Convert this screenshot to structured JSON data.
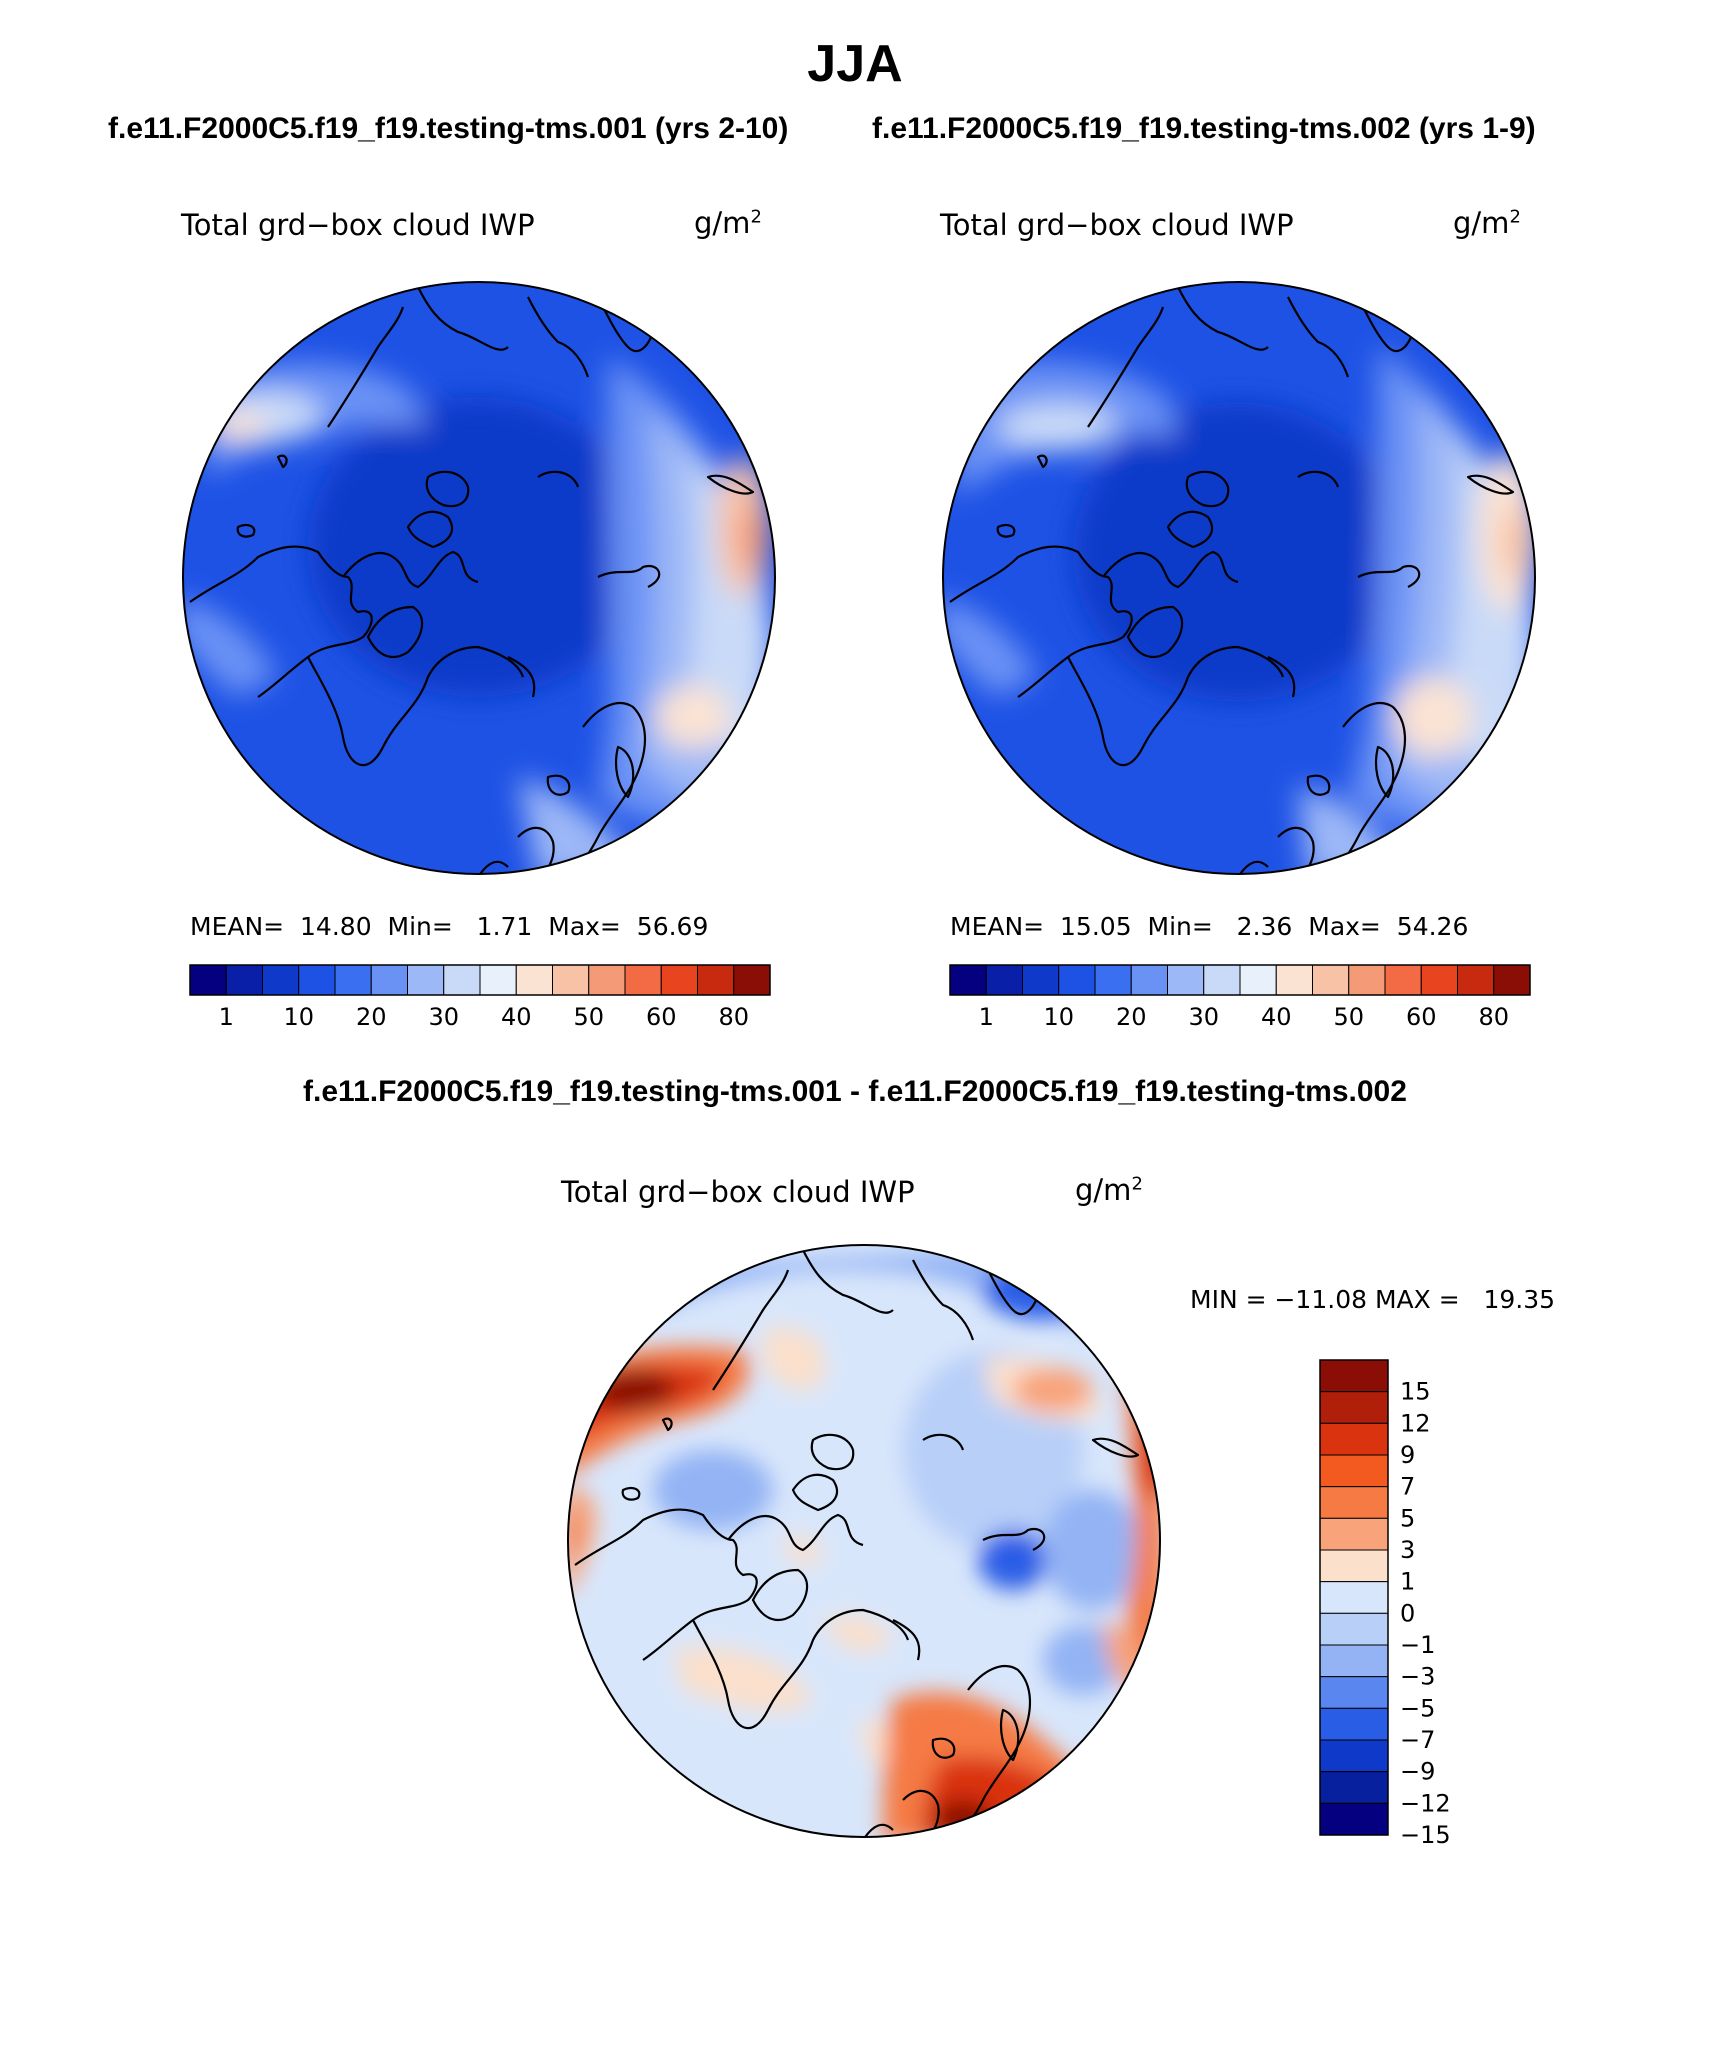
{
  "figure": {
    "season": "JJA",
    "case1_title": "f.e11.F2000C5.f19_f19.testing-tms.001 (yrs 2-10)",
    "case2_title": "f.e11.F2000C5.f19_f19.testing-tms.002 (yrs 1-9)",
    "diff_title": "f.e11.F2000C5.f19_f19.testing-tms.001 - f.e11.F2000C5.f19_f19.testing-tms.002"
  },
  "panels": [
    {
      "variable": "Total grd−box cloud IWP",
      "units_base": "g/m",
      "units_exp": "2",
      "mean_label": "MEAN=",
      "mean": "14.80",
      "min_label": "Min=",
      "min": "1.71",
      "max_label": "Max=",
      "max": "56.69"
    },
    {
      "variable": "Total grd−box cloud IWP",
      "units_base": "g/m",
      "units_exp": "2",
      "mean_label": "MEAN=",
      "mean": "15.05",
      "min_label": "Min=",
      "min": "2.36",
      "max_label": "Max=",
      "max": "54.26"
    },
    {
      "variable": "Total grd−box cloud IWP",
      "units_base": "g/m",
      "units_exp": "2",
      "min_max_text": "MIN = −11.08 MAX =   19.35"
    }
  ],
  "colorbar_abs": {
    "colors": [
      "#04007f",
      "#0a1fa8",
      "#0f3ac9",
      "#1e52e5",
      "#3a6ff2",
      "#6a92f5",
      "#9db8f7",
      "#c9daf8",
      "#e7f0fb",
      "#fbe3d3",
      "#f8c2a6",
      "#f59a76",
      "#f26b44",
      "#e84420",
      "#c82a10",
      "#8b0e06"
    ],
    "tick_labels": [
      "1",
      "10",
      "20",
      "30",
      "40",
      "50",
      "60",
      "80"
    ]
  },
  "colorbar_diff": {
    "colors": [
      "#8b0e06",
      "#b01f0a",
      "#d93310",
      "#f25a20",
      "#f57a44",
      "#f8a37a",
      "#fbe0cc",
      "#d8e6fb",
      "#b8cff8",
      "#93b3f4",
      "#5a86f0",
      "#2a5de6",
      "#0f3ac9",
      "#06209e",
      "#04007f"
    ],
    "tick_labels": [
      "15",
      "12",
      "9",
      "7",
      "5",
      "3",
      "1",
      "0",
      "−1",
      "−3",
      "−5",
      "−7",
      "−9",
      "−12",
      "−15"
    ]
  },
  "map_palette": {
    "abs": {
      "base": "#1e52e5",
      "deep": "#0f3ac9",
      "light": "#6a92f5",
      "pale": "#9db8f7",
      "paler": "#c9daf8",
      "cream": "#fbe3d3",
      "peach": "#f8c2a6",
      "salmon": "#f59a76"
    },
    "diff": {
      "base": "#d8e6fb",
      "mid": "#b8cff8",
      "blue": "#93b3f4",
      "dark": "#2a5de6",
      "cream": "#fbe0cc",
      "peach": "#f8a37a",
      "orange": "#f57a44",
      "red": "#d93310",
      "deepred": "#8b0e06"
    },
    "coast": "#000000"
  }
}
